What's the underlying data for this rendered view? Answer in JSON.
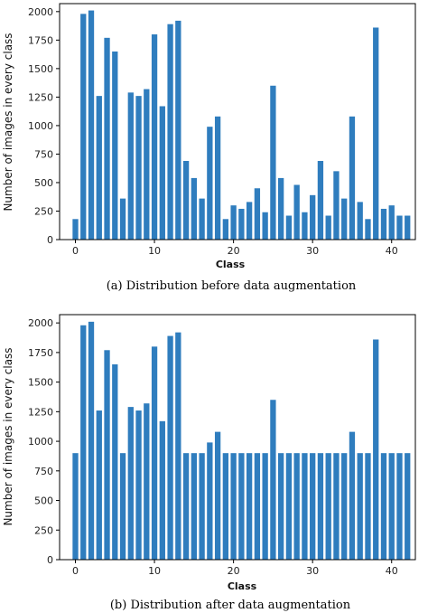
{
  "chart_data": [
    {
      "type": "bar",
      "title": "",
      "xlabel": "Class",
      "ylabel": "Number of images in every class",
      "caption": "(a) Distribution before data augmentation",
      "xlim": [
        -2,
        43
      ],
      "ylim": [
        0,
        2070
      ],
      "xticks": [
        0,
        10,
        20,
        30,
        40
      ],
      "yticks": [
        0,
        250,
        500,
        750,
        1000,
        1250,
        1500,
        1750,
        2000
      ],
      "x": [
        0,
        1,
        2,
        3,
        4,
        5,
        6,
        7,
        8,
        9,
        10,
        11,
        12,
        13,
        14,
        15,
        16,
        17,
        18,
        19,
        20,
        21,
        22,
        23,
        24,
        25,
        26,
        27,
        28,
        29,
        30,
        31,
        32,
        33,
        34,
        35,
        36,
        37,
        38,
        39,
        40,
        41,
        42
      ],
      "values": [
        180,
        1980,
        2010,
        1260,
        1770,
        1650,
        360,
        1290,
        1260,
        1320,
        1800,
        1170,
        1890,
        1920,
        690,
        540,
        360,
        990,
        1080,
        180,
        300,
        270,
        330,
        450,
        240,
        1350,
        540,
        210,
        480,
        240,
        390,
        690,
        210,
        600,
        360,
        1080,
        330,
        180,
        1860,
        270,
        300,
        210,
        210
      ]
    },
    {
      "type": "bar",
      "title": "",
      "xlabel": "Class",
      "ylabel": "Number of images in every class",
      "caption": "(b) Distribution after data augmentation",
      "xlim": [
        -2,
        43
      ],
      "ylim": [
        0,
        2070
      ],
      "xticks": [
        0,
        10,
        20,
        30,
        40
      ],
      "yticks": [
        0,
        250,
        500,
        750,
        1000,
        1250,
        1500,
        1750,
        2000
      ],
      "x": [
        0,
        1,
        2,
        3,
        4,
        5,
        6,
        7,
        8,
        9,
        10,
        11,
        12,
        13,
        14,
        15,
        16,
        17,
        18,
        19,
        20,
        21,
        22,
        23,
        24,
        25,
        26,
        27,
        28,
        29,
        30,
        31,
        32,
        33,
        34,
        35,
        36,
        37,
        38,
        39,
        40,
        41,
        42
      ],
      "values": [
        900,
        1980,
        2010,
        1260,
        1770,
        1650,
        900,
        1290,
        1260,
        1320,
        1800,
        1170,
        1890,
        1920,
        900,
        900,
        900,
        990,
        1080,
        900,
        900,
        900,
        900,
        900,
        900,
        1350,
        900,
        900,
        900,
        900,
        900,
        900,
        900,
        900,
        900,
        1080,
        900,
        900,
        1860,
        900,
        900,
        900,
        900
      ]
    }
  ],
  "colors": {
    "bar": "#2f7dbe",
    "axis": "#000000"
  }
}
